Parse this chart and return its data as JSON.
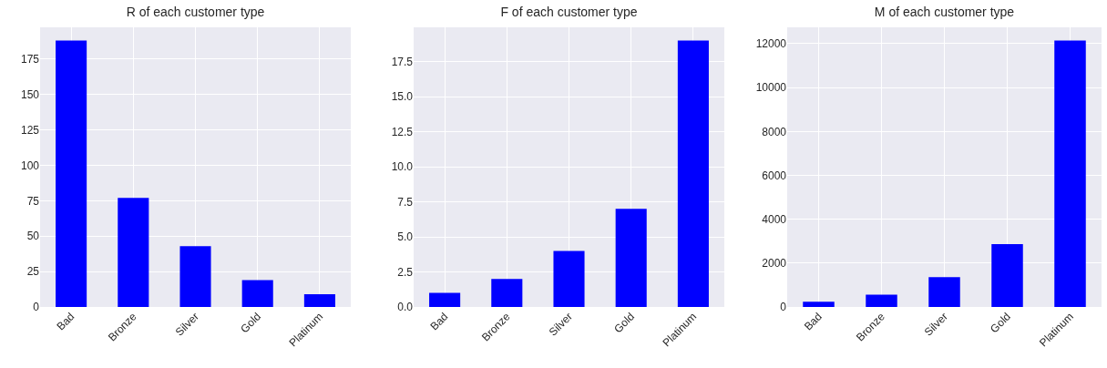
{
  "chart_data": [
    {
      "type": "bar",
      "title": "R of each customer type",
      "categories": [
        "Bad",
        "Bronze",
        "Silver",
        "Gold",
        "Platinum"
      ],
      "values": [
        188,
        77,
        43,
        19,
        9
      ],
      "color": "#0000ff",
      "ylim": [
        0,
        197.4
      ],
      "yticks": [
        0,
        25,
        50,
        75,
        100,
        125,
        150,
        175
      ],
      "grid": true
    },
    {
      "type": "bar",
      "title": "F of each customer type",
      "categories": [
        "Bad",
        "Bronze",
        "Silver",
        "Gold",
        "Platinum"
      ],
      "values": [
        1,
        2,
        4,
        7,
        19
      ],
      "color": "#0000ff",
      "ylim": [
        0,
        19.95
      ],
      "yticks": [
        {
          "value": 0,
          "label": "0.0"
        },
        {
          "value": 2.5,
          "label": "2.5"
        },
        {
          "value": 5,
          "label": "5.0"
        },
        {
          "value": 7.5,
          "label": "7.5"
        },
        {
          "value": 10,
          "label": "10.0"
        },
        {
          "value": 12.5,
          "label": "12.5"
        },
        {
          "value": 15,
          "label": "15.0"
        },
        {
          "value": 17.5,
          "label": "17.5"
        }
      ],
      "grid": true
    },
    {
      "type": "bar",
      "title": "M of each customer type",
      "categories": [
        "Bad",
        "Bronze",
        "Silver",
        "Gold",
        "Platinum"
      ],
      "values": [
        240,
        560,
        1360,
        2860,
        12140
      ],
      "color": "#0000ff",
      "ylim": [
        0,
        12747
      ],
      "yticks": [
        0,
        2000,
        4000,
        6000,
        8000,
        10000,
        12000
      ],
      "grid": true
    }
  ]
}
